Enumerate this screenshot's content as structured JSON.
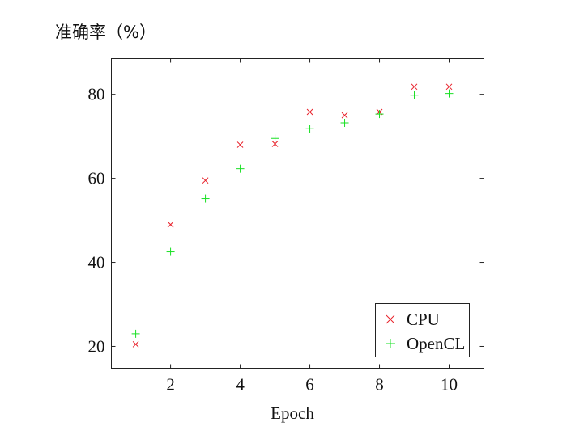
{
  "chart_data": {
    "type": "scatter",
    "title": "",
    "ylabel": "准确率（%）",
    "xlabel": "Epoch",
    "xlim": [
      0.3,
      11.0
    ],
    "ylim": [
      14.8,
      88.5
    ],
    "xticks": [
      2,
      4,
      6,
      8,
      10
    ],
    "yticks": [
      20,
      40,
      60,
      80
    ],
    "grid": false,
    "legend_position": "bottom-right",
    "series": [
      {
        "name": "CPU",
        "marker": "x",
        "color": "#e8202a",
        "x": [
          1,
          2,
          3,
          4,
          5,
          6,
          7,
          8,
          9,
          10
        ],
        "y": [
          20.5,
          49.0,
          59.5,
          68.0,
          68.2,
          75.8,
          75.0,
          75.8,
          81.8,
          81.8
        ]
      },
      {
        "name": "OpenCL",
        "marker": "+",
        "color": "#19e024",
        "x": [
          1,
          2,
          3,
          4,
          5,
          6,
          7,
          8,
          9,
          10
        ],
        "y": [
          23.0,
          42.5,
          55.2,
          62.3,
          69.5,
          71.8,
          73.2,
          75.3,
          79.8,
          80.2
        ]
      }
    ]
  }
}
